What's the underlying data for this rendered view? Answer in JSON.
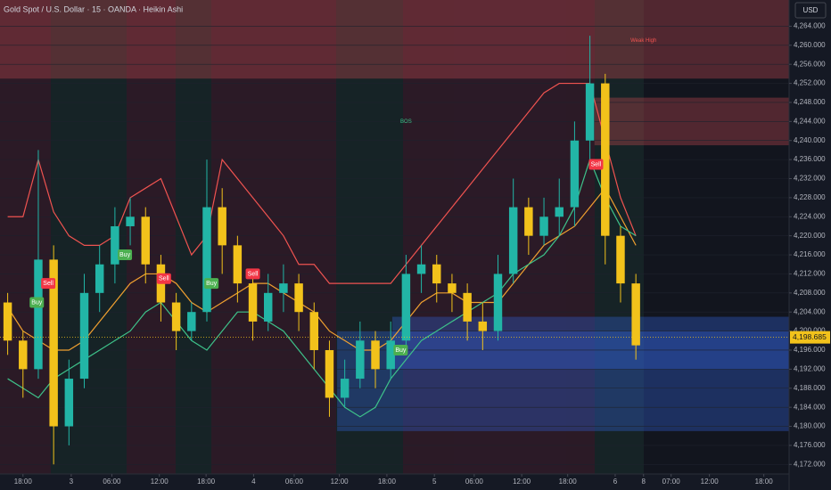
{
  "chart_data": {
    "type": "candlestick",
    "title": "Gold Spot / U.S. Dollar · 15 · OANDA · Heikin Ashi",
    "currency": "USD",
    "up_color": "#22b5a6",
    "down_color": "#f2c21b",
    "x": [
      1,
      3,
      5,
      7,
      9,
      11,
      13,
      15,
      17,
      19,
      21,
      23,
      25,
      27,
      29,
      31,
      33,
      35,
      37,
      39,
      41,
      43,
      45,
      47,
      49,
      51,
      53,
      55,
      57,
      59,
      61,
      63,
      65,
      67,
      69,
      71,
      73,
      75,
      77,
      79,
      81,
      83
    ],
    "open": [
      4206,
      4198,
      4192,
      4215,
      4180,
      4190,
      4208,
      4214,
      4222,
      4224,
      4214,
      4206,
      4200,
      4204,
      4226,
      4218,
      4210,
      4202,
      4208,
      4210,
      4204,
      4196,
      4186,
      4190,
      4198,
      4192,
      4198,
      4212,
      4214,
      4210,
      4208,
      4202,
      4200,
      4212,
      4226,
      4220,
      4224,
      4226,
      4240,
      4252,
      4220,
      4210
    ],
    "high": [
      4208,
      4200,
      4238,
      4218,
      4194,
      4212,
      4218,
      4226,
      4228,
      4226,
      4216,
      4208,
      4206,
      4236,
      4230,
      4220,
      4212,
      4212,
      4214,
      4212,
      4206,
      4198,
      4194,
      4202,
      4200,
      4202,
      4216,
      4218,
      4216,
      4212,
      4210,
      4206,
      4216,
      4232,
      4228,
      4228,
      4232,
      4244,
      4262,
      4254,
      4222,
      4212
    ],
    "low": [
      4195,
      4186,
      4190,
      4172,
      4176,
      4188,
      4204,
      4210,
      4218,
      4210,
      4202,
      4196,
      4198,
      4202,
      4212,
      4206,
      4198,
      4200,
      4204,
      4200,
      4192,
      4182,
      4184,
      4188,
      4188,
      4190,
      4196,
      4208,
      4206,
      4204,
      4198,
      4196,
      4198,
      4210,
      4216,
      4218,
      4220,
      4222,
      4236,
      4214,
      4206,
      4194
    ],
    "close": [
      4198,
      4192,
      4215,
      4180,
      4190,
      4208,
      4214,
      4222,
      4224,
      4214,
      4206,
      4200,
      4204,
      4226,
      4218,
      4210,
      4202,
      4208,
      4210,
      4204,
      4196,
      4186,
      4190,
      4198,
      4192,
      4198,
      4212,
      4214,
      4210,
      4208,
      4202,
      4200,
      4212,
      4226,
      4220,
      4224,
      4226,
      4240,
      4252,
      4220,
      4210,
      4197
    ],
    "overlays": [
      {
        "color": "#f0a030",
        "values": [
          4205,
          4200,
          4198,
          4196,
          4196,
          4198,
          4202,
          4206,
          4210,
          4212,
          4212,
          4210,
          4206,
          4204,
          4206,
          4208,
          4210,
          4210,
          4208,
          4206,
          4204,
          4200,
          4198,
          4196,
          4196,
          4198,
          4202,
          4206,
          4208,
          4208,
          4206,
          4206,
          4206,
          4210,
          4214,
          4218,
          4220,
          4222,
          4226,
          4230,
          4224,
          4218
        ]
      },
      {
        "color": "#ef5350",
        "values": [
          4224,
          4224,
          4236,
          4225,
          4220,
          4218,
          4218,
          4220,
          4228,
          4230,
          4232,
          4224,
          4216,
          4220,
          4236,
          4232,
          4228,
          4224,
          4220,
          4214,
          4214,
          4210,
          4210,
          4210,
          4210,
          4210,
          4214,
          4218,
          4222,
          4226,
          4230,
          4234,
          4238,
          4242,
          4246,
          4250,
          4252,
          4252,
          4252,
          4240,
          4228,
          4220
        ]
      },
      {
        "color": "#3ec28a",
        "values": [
          4190,
          4188,
          4186,
          4190,
          4192,
          4194,
          4196,
          4198,
          4200,
          4204,
          4206,
          4202,
          4198,
          4196,
          4200,
          4204,
          4204,
          4202,
          4200,
          4196,
          4192,
          4188,
          4184,
          4182,
          4184,
          4190,
          4194,
          4198,
          4200,
          4202,
          4204,
          4206,
          4208,
          4212,
          4214,
          4216,
          4220,
          4226,
          4236,
          4228,
          4222,
          4220
        ]
      }
    ],
    "zones": [
      {
        "x1": 0,
        "x2": 103,
        "y1": 4253,
        "y2": 4269.5,
        "color": "#b2444c"
      },
      {
        "x1": 77.6,
        "x2": 103,
        "y1": 4239,
        "y2": 4249,
        "color": "#b2444c"
      },
      {
        "x1": 51.2,
        "x2": 103,
        "y1": 4192,
        "y2": 4203,
        "color": "#2f5bc4"
      },
      {
        "x1": 44,
        "x2": 103,
        "y1": 4179,
        "y2": 4200,
        "color": "#2f5bc4"
      }
    ],
    "last_price": {
      "value": 4198.685,
      "label": "4,198.685"
    },
    "annotations": [
      {
        "text": "Sell",
        "x": 6.3,
        "y": 4210,
        "color": "#f23645"
      },
      {
        "text": "Buy",
        "x": 4.8,
        "y": 4206,
        "color": "#4caf50"
      },
      {
        "text": "Buy",
        "x": 16.3,
        "y": 4216,
        "color": "#4caf50"
      },
      {
        "text": "Sell",
        "x": 21.4,
        "y": 4211,
        "color": "#f23645"
      },
      {
        "text": "Buy",
        "x": 27.6,
        "y": 4210,
        "color": "#4caf50"
      },
      {
        "text": "Sell",
        "x": 33,
        "y": 4212,
        "color": "#f23645"
      },
      {
        "text": "Buy",
        "x": 52.3,
        "y": 4196,
        "color": "#4caf50"
      },
      {
        "text": "Sell",
        "x": 77.8,
        "y": 4235,
        "color": "#f23645"
      }
    ],
    "labels": [
      {
        "text": "BOS",
        "x": 53,
        "y": 4244
      },
      {
        "text": "Weak High",
        "x": 84,
        "y": 4261
      }
    ],
    "xlim": [
      0,
      103
    ],
    "xticks": [
      {
        "value": 3,
        "label": "18:00"
      },
      {
        "value": 9.3,
        "label": "3"
      },
      {
        "value": 14.6,
        "label": "06:00"
      },
      {
        "value": 20.8,
        "label": "12:00"
      },
      {
        "value": 26.9,
        "label": "18:00"
      },
      {
        "value": 33.1,
        "label": "4"
      },
      {
        "value": 38.4,
        "label": "06:00"
      },
      {
        "value": 44.3,
        "label": "12:00"
      },
      {
        "value": 50.5,
        "label": "18:00"
      },
      {
        "value": 56.7,
        "label": "5"
      },
      {
        "value": 61.9,
        "label": "06:00"
      },
      {
        "value": 68.1,
        "label": "12:00"
      },
      {
        "value": 74.1,
        "label": "18:00"
      },
      {
        "value": 80.3,
        "label": "6"
      },
      {
        "value": 84,
        "label": "8"
      },
      {
        "value": 87.6,
        "label": "07:00"
      },
      {
        "value": 92.6,
        "label": "12:00"
      },
      {
        "value": 99.7,
        "label": "18:00"
      }
    ],
    "ylim": [
      4170,
      4269.5
    ],
    "yticks": [
      {
        "value": 4172,
        "label": "4,172.000"
      },
      {
        "value": 4176,
        "label": "4,176.000"
      },
      {
        "value": 4180,
        "label": "4,180.000"
      },
      {
        "value": 4184,
        "label": "4,184.000"
      },
      {
        "value": 4188,
        "label": "4,188.000"
      },
      {
        "value": 4192,
        "label": "4,192.000"
      },
      {
        "value": 4196,
        "label": "4,196.000"
      },
      {
        "value": 4200,
        "label": "4,200.000"
      },
      {
        "value": 4204,
        "label": "4,204.000"
      },
      {
        "value": 4208,
        "label": "4,208.000"
      },
      {
        "value": 4212,
        "label": "4,212.000"
      },
      {
        "value": 4216,
        "label": "4,216.000"
      },
      {
        "value": 4220,
        "label": "4,220.000"
      },
      {
        "value": 4224,
        "label": "4,224.000"
      },
      {
        "value": 4228,
        "label": "4,228.000"
      },
      {
        "value": 4232,
        "label": "4,232.000"
      },
      {
        "value": 4236,
        "label": "4,236.000"
      },
      {
        "value": 4240,
        "label": "4,240.000"
      },
      {
        "value": 4244,
        "label": "4,244.000"
      },
      {
        "value": 4248,
        "label": "4,248.000"
      },
      {
        "value": 4252,
        "label": "4,252.000"
      },
      {
        "value": 4256,
        "label": "4,256.000"
      },
      {
        "value": 4260,
        "label": "4,260.000"
      },
      {
        "value": 4264,
        "label": "4,264.000"
      }
    ]
  }
}
